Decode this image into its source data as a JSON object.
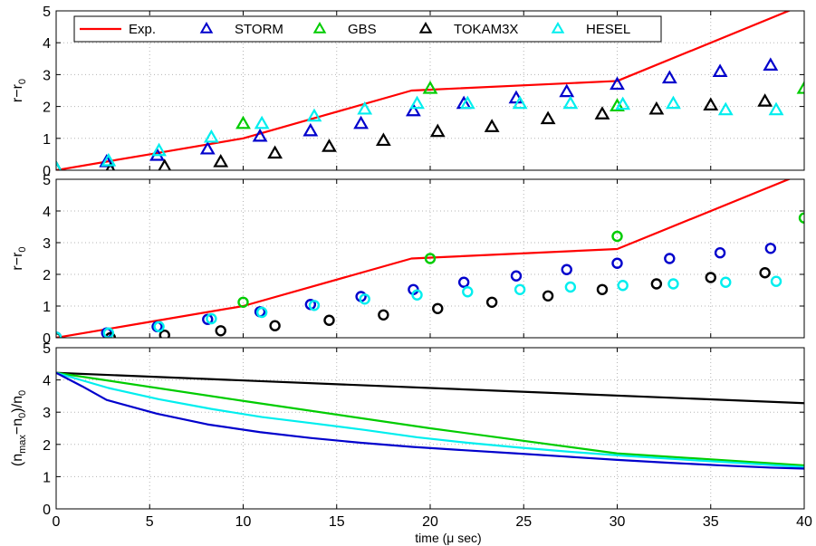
{
  "chart_data": [
    {
      "type": "scatter",
      "ylabel_base": "r−r",
      "ylabel_sub": "0",
      "xlim": [
        0,
        40
      ],
      "ylim": [
        0,
        5
      ],
      "yticks": [
        "0",
        "1",
        "2",
        "3",
        "4",
        "5"
      ],
      "grid": true,
      "legend_position": "top",
      "series": [
        {
          "name": "Exp.",
          "kind": "line",
          "color": "#ff0000",
          "x": [
            0,
            5,
            10,
            19,
            30,
            40
          ],
          "y": [
            0,
            0.5,
            1.0,
            2.5,
            2.8,
            5.2
          ]
        },
        {
          "name": "STORM",
          "kind": "triangle",
          "color": "#0000cc",
          "x": [
            0,
            2.7,
            5.4,
            8.1,
            10.9,
            13.6,
            16.3,
            19.1,
            21.8,
            24.6,
            27.3,
            30.0,
            32.8,
            35.5,
            38.2
          ],
          "y": [
            0.05,
            0.25,
            0.45,
            0.65,
            1.05,
            1.22,
            1.45,
            1.85,
            2.08,
            2.25,
            2.45,
            2.68,
            2.88,
            3.08,
            3.28
          ]
        },
        {
          "name": "GBS",
          "kind": "triangle",
          "color": "#00cc00",
          "x": [
            0,
            10,
            20,
            30,
            40
          ],
          "y": [
            0.05,
            1.45,
            2.55,
            2.0,
            2.55
          ]
        },
        {
          "name": "TOKAM3X",
          "kind": "triangle",
          "color": "#000000",
          "x": [
            0,
            2.9,
            5.8,
            8.8,
            11.7,
            14.6,
            17.5,
            20.4,
            23.3,
            26.3,
            29.2,
            32.1,
            35.0,
            37.9
          ],
          "y": [
            0.05,
            0.0,
            0.1,
            0.25,
            0.52,
            0.73,
            0.92,
            1.2,
            1.35,
            1.6,
            1.75,
            1.9,
            2.03,
            2.15
          ]
        },
        {
          "name": "HESEL",
          "kind": "triangle",
          "color": "#00eeee",
          "x": [
            0,
            2.8,
            5.5,
            8.3,
            11.0,
            13.8,
            16.5,
            19.3,
            22.0,
            24.8,
            27.5,
            30.3,
            33.0,
            35.8,
            38.5
          ],
          "y": [
            0.05,
            0.28,
            0.6,
            1.02,
            1.45,
            1.68,
            1.9,
            2.08,
            2.08,
            2.08,
            2.08,
            2.05,
            2.08,
            1.88,
            1.88
          ]
        }
      ],
      "legend": [
        {
          "name": "Exp.",
          "marker": "line",
          "color": "#ff0000"
        },
        {
          "name": "STORM",
          "marker": "triangle",
          "color": "#0000cc"
        },
        {
          "name": "GBS",
          "marker": "triangle",
          "color": "#00cc00"
        },
        {
          "name": "TOKAM3X",
          "marker": "triangle",
          "color": "#000000"
        },
        {
          "name": "HESEL",
          "marker": "triangle",
          "color": "#00eeee"
        }
      ]
    },
    {
      "type": "scatter",
      "ylabel_base": "r−r",
      "ylabel_sub": "0",
      "xlim": [
        0,
        40
      ],
      "ylim": [
        0,
        5
      ],
      "yticks": [
        "0",
        "1",
        "2",
        "3",
        "4",
        "5"
      ],
      "grid": true,
      "series": [
        {
          "name": "Exp.",
          "kind": "line",
          "color": "#ff0000",
          "x": [
            0,
            5,
            10,
            19,
            30,
            40
          ],
          "y": [
            0,
            0.5,
            1.0,
            2.5,
            2.8,
            5.2
          ]
        },
        {
          "name": "STORM",
          "kind": "circle",
          "color": "#0000cc",
          "x": [
            0,
            2.7,
            5.4,
            8.1,
            10.9,
            13.6,
            16.3,
            19.1,
            21.8,
            24.6,
            27.3,
            30.0,
            32.8,
            35.5,
            38.2
          ],
          "y": [
            0.02,
            0.15,
            0.35,
            0.58,
            0.82,
            1.05,
            1.3,
            1.52,
            1.75,
            1.95,
            2.15,
            2.35,
            2.5,
            2.68,
            2.82
          ]
        },
        {
          "name": "GBS",
          "kind": "circle",
          "color": "#00cc00",
          "x": [
            0,
            10,
            20,
            30,
            40
          ],
          "y": [
            0.0,
            1.12,
            2.5,
            3.2,
            3.78
          ]
        },
        {
          "name": "TOKAM3X",
          "kind": "circle",
          "color": "#000000",
          "x": [
            0,
            2.9,
            5.8,
            8.8,
            11.7,
            14.6,
            17.5,
            20.4,
            23.3,
            26.3,
            29.2,
            32.1,
            35.0,
            37.9
          ],
          "y": [
            0.0,
            0.0,
            0.08,
            0.22,
            0.38,
            0.55,
            0.72,
            0.92,
            1.12,
            1.32,
            1.52,
            1.7,
            1.9,
            2.05
          ]
        },
        {
          "name": "HESEL",
          "kind": "circle",
          "color": "#00eeee",
          "x": [
            0,
            2.8,
            5.5,
            8.3,
            11.0,
            13.8,
            16.5,
            19.3,
            22.0,
            24.8,
            27.5,
            30.3,
            33.0,
            35.8,
            38.5
          ],
          "y": [
            0.02,
            0.15,
            0.35,
            0.6,
            0.8,
            1.02,
            1.22,
            1.35,
            1.45,
            1.52,
            1.6,
            1.65,
            1.7,
            1.75,
            1.78
          ]
        }
      ]
    },
    {
      "type": "line",
      "ylabel_html": "(n<tspan baseline-shift=\"-4\" font-size=\"11\">max</tspan>−n<tspan baseline-shift=\"-4\" font-size=\"11\">0</tspan>)/n<tspan baseline-shift=\"-4\" font-size=\"11\">0</tspan>",
      "xlabel": "time (μ sec)",
      "xlim": [
        0,
        40
      ],
      "ylim": [
        0,
        5
      ],
      "xticks": [
        "0",
        "5",
        "10",
        "15",
        "20",
        "25",
        "30",
        "35",
        "40"
      ],
      "yticks": [
        "0",
        "1",
        "2",
        "3",
        "4",
        "5"
      ],
      "grid": true,
      "series": [
        {
          "name": "TOKAM3X",
          "color": "#000000",
          "x": [
            0,
            40
          ],
          "y": [
            4.22,
            3.28
          ]
        },
        {
          "name": "GBS",
          "color": "#00cc00",
          "x": [
            0,
            10,
            20,
            30,
            40
          ],
          "y": [
            4.22,
            3.35,
            2.5,
            1.72,
            1.35
          ]
        },
        {
          "name": "HESEL",
          "color": "#00eeee",
          "x": [
            0,
            2.8,
            5.5,
            8.3,
            11.0,
            13.8,
            16.5,
            19.3,
            22.0,
            24.8,
            27.5,
            30.3,
            33.0,
            35.8,
            38.5,
            40
          ],
          "y": [
            4.22,
            3.75,
            3.4,
            3.1,
            2.85,
            2.65,
            2.45,
            2.22,
            2.05,
            1.9,
            1.77,
            1.65,
            1.55,
            1.45,
            1.35,
            1.3
          ]
        },
        {
          "name": "STORM",
          "color": "#0000cc",
          "x": [
            0,
            1.4,
            2.7,
            5.4,
            8.1,
            10.9,
            13.6,
            16.3,
            19.1,
            21.8,
            24.6,
            27.3,
            30.0,
            32.8,
            35.5,
            38.2,
            40
          ],
          "y": [
            4.22,
            3.8,
            3.38,
            2.95,
            2.62,
            2.38,
            2.2,
            2.05,
            1.92,
            1.82,
            1.72,
            1.62,
            1.52,
            1.43,
            1.35,
            1.28,
            1.25
          ]
        }
      ]
    }
  ]
}
